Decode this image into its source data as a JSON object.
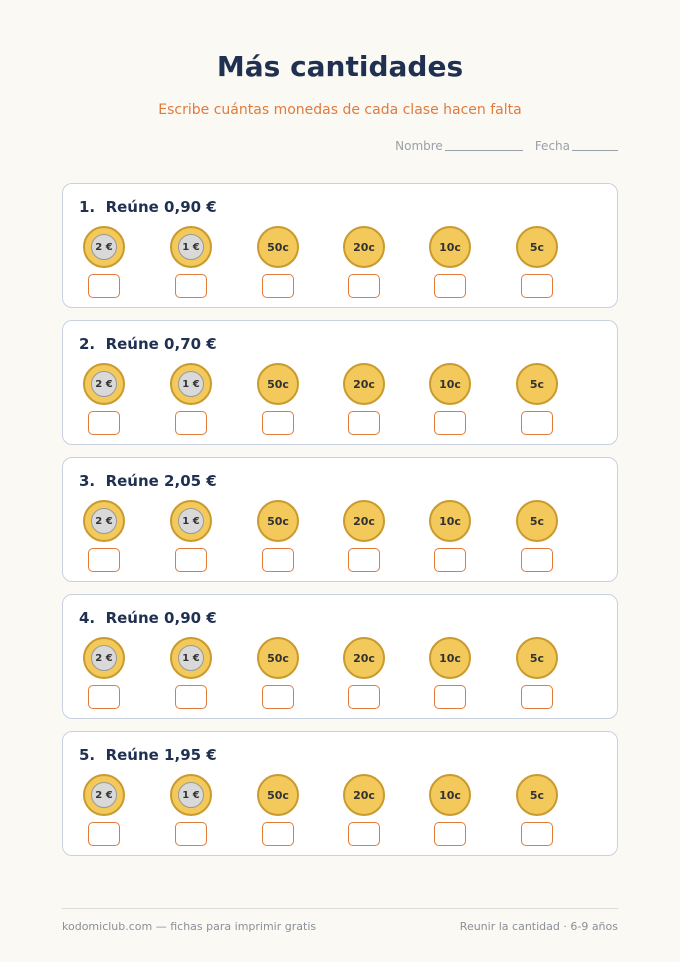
{
  "header": {
    "title": "Más cantidades",
    "subtitle": "Escribe cuántas monedas de cada clase hacen falta",
    "name_label": "Nombre",
    "date_label": "Fecha"
  },
  "coins": [
    "2 €",
    "1 €",
    "50c",
    "20c",
    "10c",
    "5c"
  ],
  "exercises": [
    {
      "title": "1.  Reúne 0,90 €"
    },
    {
      "title": "2.  Reúne 0,70 €"
    },
    {
      "title": "3.  Reúne 2,05 €"
    },
    {
      "title": "4.  Reúne 0,90 €"
    },
    {
      "title": "5.  Reúne 1,95 €"
    }
  ],
  "footer": {
    "left": "kodomiclub.com — fichas para imprimir gratis",
    "right": "Reunir la cantidad · 6-9 años"
  }
}
